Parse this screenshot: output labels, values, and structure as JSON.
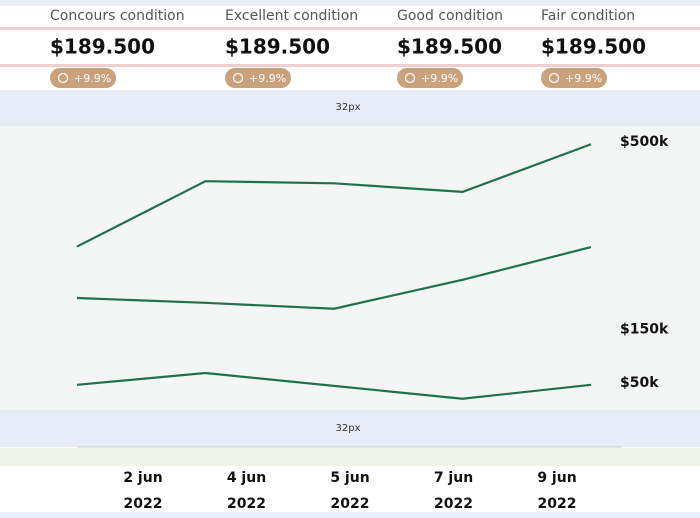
{
  "cards": [
    {
      "label": "Concours condition",
      "price": "$189.500",
      "change": "+9.9%"
    },
    {
      "label": "Excellent condition",
      "price": "$189.500",
      "change": "+9.9%"
    },
    {
      "label": "Good condition",
      "price": "$189.500",
      "change": "+9.9%"
    },
    {
      "label": "Fair condition",
      "price": "$189.500",
      "change": "+9.9%"
    }
  ],
  "spacing_labels": [
    "32px",
    "32px"
  ],
  "chart_data": {
    "type": "line",
    "categories": [
      "2 jun",
      "4 jun",
      "5 jun",
      "7 jun",
      "9 jun"
    ],
    "category_years": [
      "2022",
      "2022",
      "2022",
      "2022",
      "2022"
    ],
    "series": [
      {
        "color": "#23704f",
        "values": [
          305,
          427,
          423,
          407,
          496
        ]
      },
      {
        "color": "#23704f",
        "values": [
          209,
          200,
          189,
          243,
          304
        ]
      },
      {
        "color": "#23704f",
        "values": [
          47,
          69,
          45,
          21,
          47
        ]
      }
    ],
    "ylim": [
      0,
      530
    ],
    "yticks": [
      {
        "value": 500,
        "label": "$500k"
      },
      {
        "value": 150,
        "label": "$150k"
      },
      {
        "value": 50,
        "label": "$50k"
      }
    ]
  }
}
